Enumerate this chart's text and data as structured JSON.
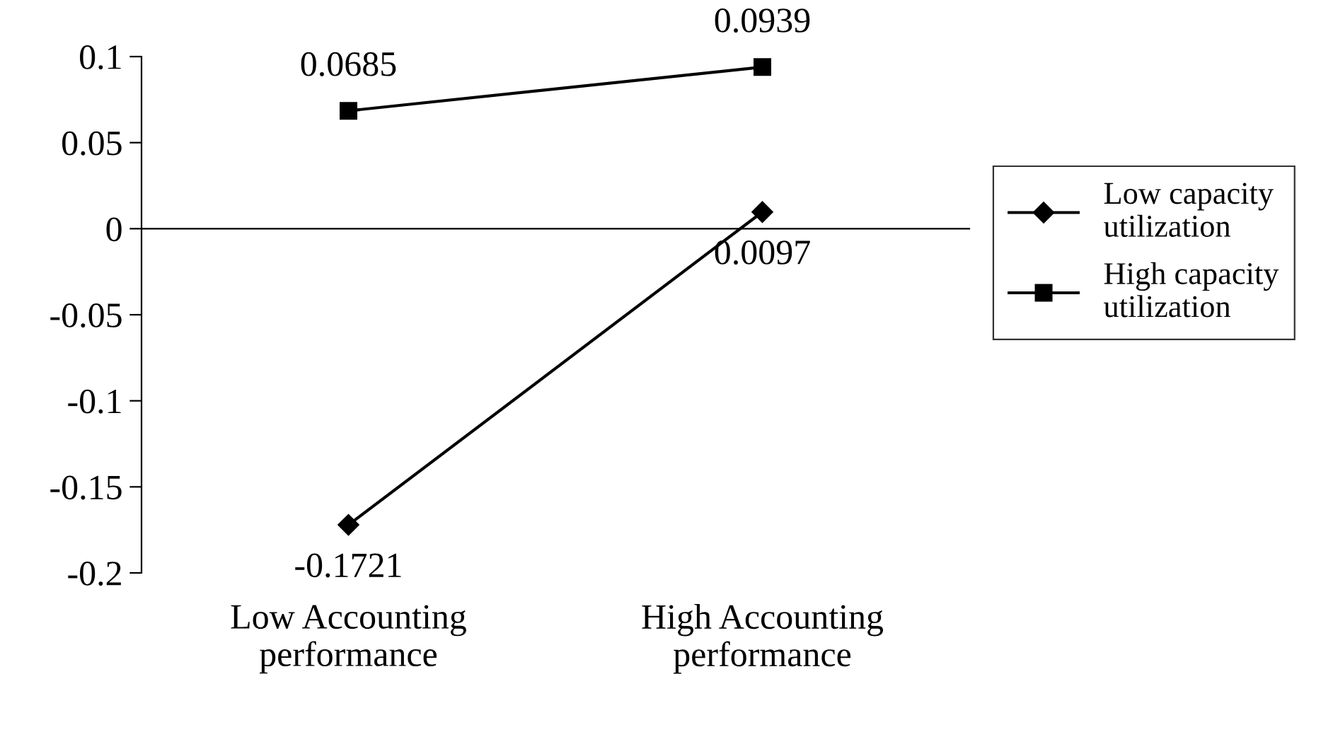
{
  "chart_data": {
    "type": "line",
    "categories": [
      "Low Accounting\nperformance",
      "High Accounting\nperformance"
    ],
    "series": [
      {
        "name": "Low capacity\nutilization",
        "color": "#000000",
        "marker": "diamond",
        "values": [
          -0.1721,
          0.0097
        ]
      },
      {
        "name": "High capacity\nutilization",
        "color": "#000000",
        "marker": "square",
        "values": [
          0.0685,
          0.0939
        ]
      }
    ],
    "ylim": [
      -0.2,
      0.1
    ],
    "yticks": [
      -0.2,
      -0.15,
      -0.1,
      -0.05,
      0,
      0.05,
      0.1
    ],
    "ref_lines": [
      {
        "axis": "y",
        "value": 0
      }
    ],
    "data_labels": true,
    "legend": "right",
    "line_style": "solid"
  }
}
